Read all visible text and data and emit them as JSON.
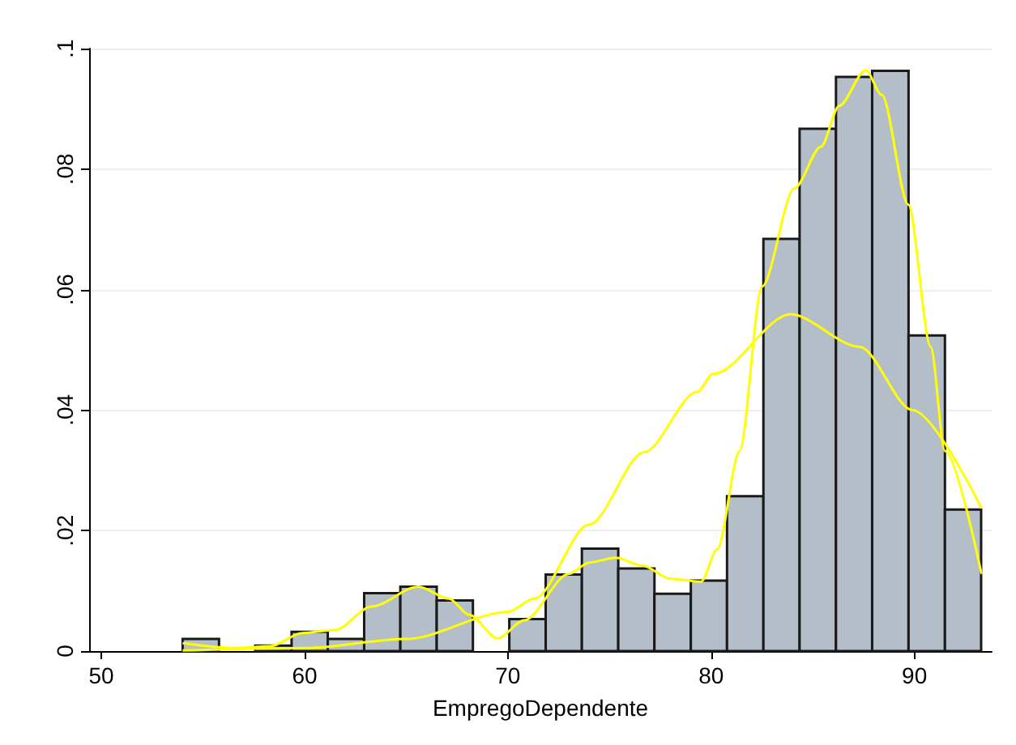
{
  "chart_data": {
    "type": "histogram",
    "xlabel": "EmpregoDependente",
    "color": "#b3bec9",
    "bins": [
      54,
      55.79,
      57.57,
      59.36,
      61.14,
      62.93,
      64.71,
      66.5,
      68.28,
      70.07,
      71.86,
      73.64,
      75.43,
      77.21,
      79.0,
      80.78,
      82.57,
      84.35,
      86.14,
      87.92,
      89.71,
      91.5,
      93.28
    ],
    "values": [
      0.002,
      0,
      0.0009,
      0.0032,
      0.002,
      0.0096,
      0.0107,
      0.0084,
      0,
      0.0053,
      0.0127,
      0.017,
      0.0137,
      0.0095,
      0.0117,
      0.0257,
      0.0684,
      0.0867,
      0.0953,
      0.0963,
      0.0524,
      0.0235
    ],
    "series": [
      {
        "type": "line",
        "color": "#ffff00",
        "x": [
          54,
          56.5,
          58.3,
          59.9,
          61.5,
          63.3,
          65.6,
          67.1,
          68.1,
          69.5,
          70.8,
          73,
          74,
          75.3,
          76.6,
          78,
          79.5,
          80.3,
          81.4,
          82.5,
          84.1,
          85.4,
          86.3,
          87.6,
          88.4,
          89.7,
          90.8,
          91.5,
          93.3
        ],
        "values": [
          0.0013,
          0.0005,
          0.0008,
          0.003,
          0.0035,
          0.0074,
          0.0107,
          0.0087,
          0.006,
          0.0021,
          0.0051,
          0.0128,
          0.0147,
          0.0155,
          0.0142,
          0.012,
          0.0115,
          0.0169,
          0.0332,
          0.0605,
          0.0768,
          0.0837,
          0.0905,
          0.0964,
          0.0923,
          0.0741,
          0.0505,
          0.0332,
          0.0128
        ]
      },
      {
        "type": "line",
        "color": "#ffff00",
        "x": [
          54,
          60,
          65,
          70,
          71.3,
          74,
          76.7,
          79.3,
          80.1,
          83.9,
          87.3,
          89.9,
          93.3
        ],
        "values": [
          0.0001,
          0.0005,
          0.002,
          0.0065,
          0.0087,
          0.021,
          0.033,
          0.043,
          0.046,
          0.0559,
          0.0505,
          0.04,
          0.0237
        ]
      }
    ],
    "xlim": [
      49.4,
      93.8
    ],
    "xticks": [
      50,
      60,
      70,
      80,
      90
    ],
    "ylim": [
      0,
      0.1
    ],
    "yticks": [
      {
        "value": 0,
        "label": "0"
      },
      {
        "value": 0.02,
        "label": ".02"
      },
      {
        "value": 0.04,
        "label": ".04"
      },
      {
        "value": 0.06,
        "label": ".06"
      },
      {
        "value": 0.08,
        "label": ".08"
      },
      {
        "value": 0.1,
        "label": ".1"
      }
    ],
    "grid": "y"
  }
}
